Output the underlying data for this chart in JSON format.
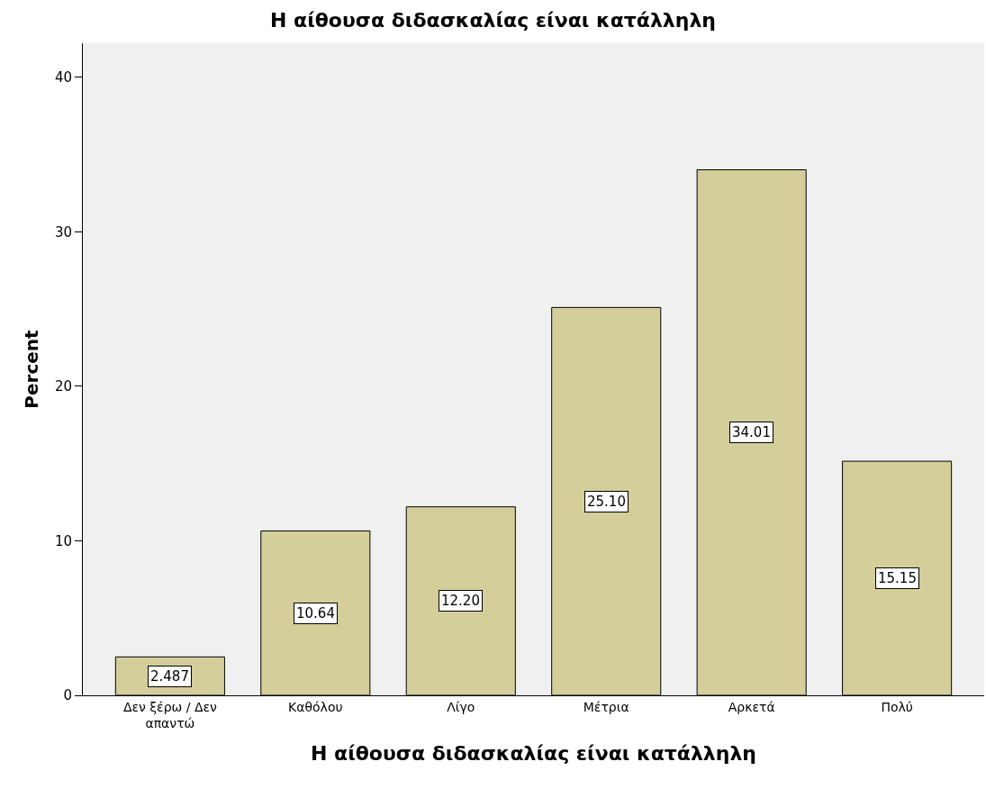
{
  "chart_data": {
    "type": "bar",
    "title": "Η αίθουσα διδασκαλίας είναι κατάλληλη",
    "xlabel": "Η αίθουσα διδασκαλίας είναι κατάλληλη",
    "ylabel": "Percent",
    "categories": [
      "Δεν ξέρω / Δεν απαντώ",
      "Καθόλου",
      "Λίγο",
      "Μέτρια",
      "Αρκετά",
      "Πολύ"
    ],
    "values": [
      2.487,
      10.64,
      12.2,
      25.1,
      34.01,
      15.15
    ],
    "value_labels": [
      "2.487",
      "10.64",
      "12.20",
      "25.10",
      "34.01",
      "15.15"
    ],
    "color": "#d3ce9a",
    "ylim": [
      0,
      42.2
    ],
    "yticks": [
      0,
      10,
      20,
      30,
      40
    ],
    "grid": false
  }
}
